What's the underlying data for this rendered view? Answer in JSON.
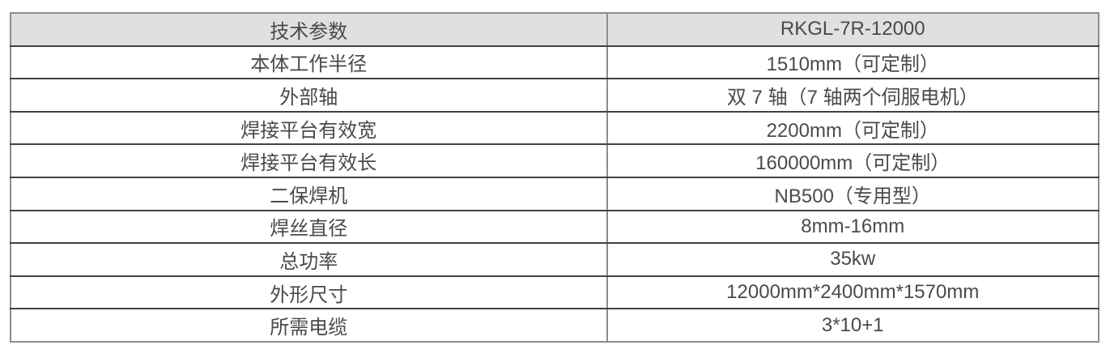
{
  "table": {
    "header": {
      "param": "技术参数",
      "model": "RKGL-7R-12000"
    },
    "rows": [
      {
        "param": "本体工作半径",
        "value": "1510mm（可定制）"
      },
      {
        "param": "外部轴",
        "value": "双 7 轴（7 轴两个伺服电机）"
      },
      {
        "param": "焊接平台有效宽",
        "value": "2200mm（可定制）"
      },
      {
        "param": "焊接平台有效长",
        "value": "160000mm（可定制）"
      },
      {
        "param": "二保焊机",
        "value": "NB500（专用型）"
      },
      {
        "param": "焊丝直径",
        "value": "8mm-16mm"
      },
      {
        "param": "总功率",
        "value": "35kw"
      },
      {
        "param": "外形尺寸",
        "value": "12000mm*2400mm*1570mm"
      },
      {
        "param": "所需电缆",
        "value": "3*10+1"
      }
    ],
    "colors": {
      "header_bg": "#e0e0e0",
      "border_outer": "#8d8d8d",
      "border_inner_h": "#414141",
      "text": "#4a4a4a"
    }
  }
}
